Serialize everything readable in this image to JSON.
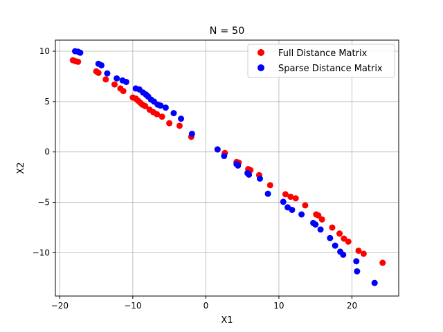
{
  "chart_data": {
    "type": "scatter",
    "title": "N = 50",
    "xlabel": "X1",
    "ylabel": "X2",
    "xlim": [
      -20.6,
      26.4
    ],
    "ylim": [
      -14.3,
      11.1
    ],
    "xticks": [
      -20,
      -10,
      0,
      10,
      20
    ],
    "yticks": [
      -10,
      -5,
      0,
      5,
      10
    ],
    "tick_labels": {
      "x": [
        "−20",
        "−10",
        "0",
        "10",
        "20"
      ],
      "y": [
        "−10",
        "−5",
        "0",
        "5",
        "10"
      ]
    },
    "grid": true,
    "legend_position": "top-right",
    "series": [
      {
        "name": "Full Distance Matrix",
        "color": "#ff0000",
        "points": [
          [
            -18.2,
            9.1
          ],
          [
            -17.8,
            9.0
          ],
          [
            -17.5,
            8.95
          ],
          [
            -15.0,
            8.0
          ],
          [
            -14.7,
            7.85
          ],
          [
            -13.7,
            7.2
          ],
          [
            -12.5,
            6.7
          ],
          [
            -11.7,
            6.3
          ],
          [
            -11.3,
            6.05
          ],
          [
            -10.0,
            5.4
          ],
          [
            -9.6,
            5.3
          ],
          [
            -9.3,
            5.1
          ],
          [
            -9.0,
            4.9
          ],
          [
            -8.7,
            4.7
          ],
          [
            -8.3,
            4.55
          ],
          [
            -7.7,
            4.2
          ],
          [
            -7.2,
            3.95
          ],
          [
            -6.7,
            3.75
          ],
          [
            -6.0,
            3.5
          ],
          [
            -5.0,
            2.85
          ],
          [
            -3.6,
            2.6
          ],
          [
            -2.0,
            1.5
          ],
          [
            1.6,
            0.25
          ],
          [
            2.6,
            -0.1
          ],
          [
            4.2,
            -1.0
          ],
          [
            4.5,
            -1.05
          ],
          [
            5.8,
            -1.7
          ],
          [
            6.1,
            -1.8
          ],
          [
            7.3,
            -2.3
          ],
          [
            8.8,
            -3.3
          ],
          [
            10.9,
            -4.2
          ],
          [
            11.6,
            -4.45
          ],
          [
            12.3,
            -4.6
          ],
          [
            13.6,
            -5.3
          ],
          [
            15.1,
            -6.2
          ],
          [
            15.4,
            -6.3
          ],
          [
            15.9,
            -6.7
          ],
          [
            17.3,
            -7.5
          ],
          [
            18.3,
            -8.1
          ],
          [
            18.9,
            -8.6
          ],
          [
            19.5,
            -8.9
          ],
          [
            20.9,
            -9.8
          ],
          [
            21.6,
            -10.1
          ],
          [
            24.2,
            -11.0
          ]
        ]
      },
      {
        "name": "Sparse Distance Matrix",
        "color": "#0000ff",
        "points": [
          [
            -17.9,
            10.0
          ],
          [
            -17.5,
            9.95
          ],
          [
            -17.2,
            9.85
          ],
          [
            -14.7,
            8.75
          ],
          [
            -14.3,
            8.6
          ],
          [
            -13.5,
            7.8
          ],
          [
            -12.2,
            7.3
          ],
          [
            -11.4,
            7.1
          ],
          [
            -10.9,
            6.95
          ],
          [
            -9.6,
            6.3
          ],
          [
            -9.1,
            6.2
          ],
          [
            -8.6,
            5.9
          ],
          [
            -8.2,
            5.7
          ],
          [
            -7.9,
            5.5
          ],
          [
            -7.5,
            5.2
          ],
          [
            -7.1,
            5.0
          ],
          [
            -6.6,
            4.7
          ],
          [
            -6.2,
            4.6
          ],
          [
            -5.5,
            4.4
          ],
          [
            -4.4,
            3.85
          ],
          [
            -3.4,
            3.3
          ],
          [
            -1.9,
            1.8
          ],
          [
            1.6,
            0.25
          ],
          [
            2.5,
            -0.4
          ],
          [
            4.2,
            -1.2
          ],
          [
            4.4,
            -1.35
          ],
          [
            5.7,
            -2.1
          ],
          [
            5.9,
            -2.25
          ],
          [
            7.4,
            -2.65
          ],
          [
            8.5,
            -4.15
          ],
          [
            10.6,
            -4.95
          ],
          [
            11.2,
            -5.5
          ],
          [
            11.8,
            -5.75
          ],
          [
            13.1,
            -6.2
          ],
          [
            14.7,
            -7.05
          ],
          [
            15.0,
            -7.2
          ],
          [
            15.7,
            -7.7
          ],
          [
            17.0,
            -8.55
          ],
          [
            17.7,
            -9.3
          ],
          [
            18.4,
            -9.9
          ],
          [
            18.8,
            -10.2
          ],
          [
            20.6,
            -10.85
          ],
          [
            20.7,
            -11.85
          ],
          [
            23.1,
            -13.0
          ]
        ]
      }
    ]
  }
}
